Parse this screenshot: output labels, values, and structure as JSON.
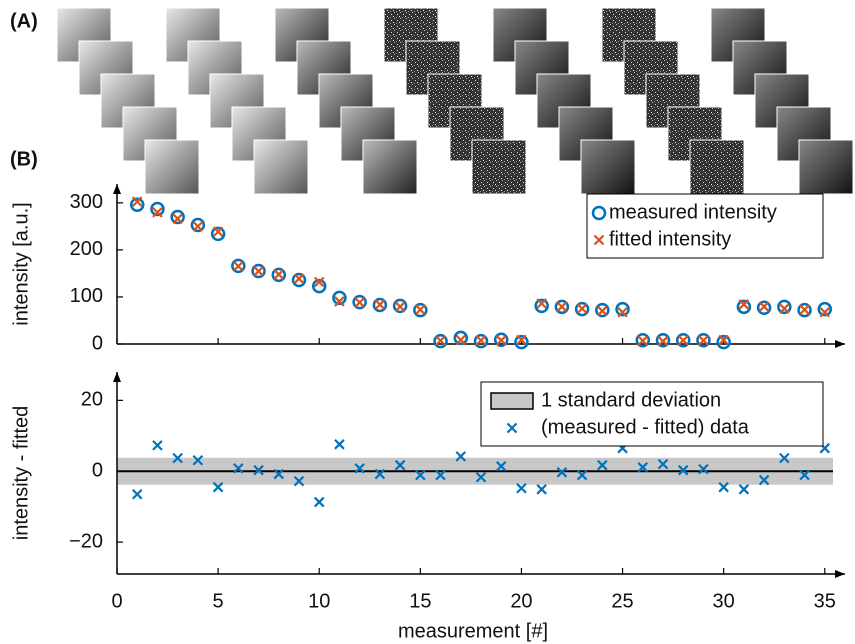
{
  "panel_labels": [
    "(A)",
    "(B)"
  ],
  "chart_data": [
    {
      "type": "scatter",
      "ylabel": "intensity [a.u.]",
      "x": [
        1,
        2,
        3,
        4,
        5,
        6,
        7,
        8,
        9,
        10,
        11,
        12,
        13,
        14,
        15,
        16,
        17,
        18,
        19,
        20,
        21,
        22,
        23,
        24,
        25,
        26,
        27,
        28,
        29,
        30,
        31,
        32,
        33,
        34,
        35
      ],
      "series": [
        {
          "name": "measured intensity",
          "marker": "circle",
          "color": "#0072bd",
          "values": [
            296,
            287,
            270,
            253,
            234,
            166,
            155,
            147,
            136,
            123,
            98,
            89,
            83,
            81,
            72,
            6,
            13,
            6,
            9,
            4,
            81,
            79,
            74,
            72,
            74,
            8,
            8,
            8,
            8,
            4,
            79,
            77,
            79,
            72,
            74
          ]
        },
        {
          "name": "fitted intensity",
          "marker": "x",
          "color": "#d95319",
          "values": [
            302.5,
            279.7,
            266.3,
            249.9,
            238.5,
            165.2,
            154.7,
            147.8,
            138.8,
            131.7,
            90.4,
            88.2,
            83.8,
            79.3,
            73.1,
            7.1,
            8.8,
            7.7,
            7.6,
            8.8,
            86.1,
            79.3,
            75.1,
            70.3,
            67.5,
            6.9,
            6,
            7.7,
            7.4,
            8.5,
            84.1,
            79.5,
            75.3,
            73.1,
            67.5
          ]
        }
      ],
      "xlim": [
        0,
        36
      ],
      "xticks": [
        0,
        5,
        10,
        15,
        20,
        25,
        30,
        35
      ],
      "ylim": [
        0,
        340
      ],
      "yticks": [
        0,
        100,
        200,
        300
      ],
      "legend": "upper right"
    },
    {
      "type": "scatter",
      "ylabel": "intensity - fitted",
      "xlabel": "measurement [#]",
      "x": [
        1,
        2,
        3,
        4,
        5,
        6,
        7,
        8,
        9,
        10,
        11,
        12,
        13,
        14,
        15,
        16,
        17,
        18,
        19,
        20,
        21,
        22,
        23,
        24,
        25,
        26,
        27,
        28,
        29,
        30,
        31,
        32,
        33,
        34,
        35
      ],
      "band": {
        "name": "1 standard deviation",
        "color": "#c8c8c8",
        "lower": -3.8,
        "upper": 3.8
      },
      "series": [
        {
          "name": "(measured - fitted) data",
          "marker": "x",
          "color": "#0072bd",
          "values": [
            -6.5,
            7.3,
            3.7,
            3.1,
            -4.5,
            0.8,
            0.3,
            -0.8,
            -2.8,
            -8.7,
            7.6,
            0.8,
            -0.8,
            1.7,
            -1.1,
            -1.1,
            4.2,
            -1.7,
            1.4,
            -4.8,
            -5.1,
            -0.3,
            -1.1,
            1.7,
            6.5,
            1.1,
            2.0,
            0.3,
            0.6,
            -4.5,
            -5.1,
            -2.5,
            3.7,
            -1.1,
            6.5
          ]
        }
      ],
      "xlim": [
        0,
        36
      ],
      "xticks": [
        0,
        5,
        10,
        15,
        20,
        25,
        30,
        35
      ],
      "ylim": [
        -29,
        28
      ],
      "yticks": [
        {
          "value": -20,
          "label": "−20"
        },
        0,
        20
      ],
      "legend": "upper right"
    }
  ]
}
